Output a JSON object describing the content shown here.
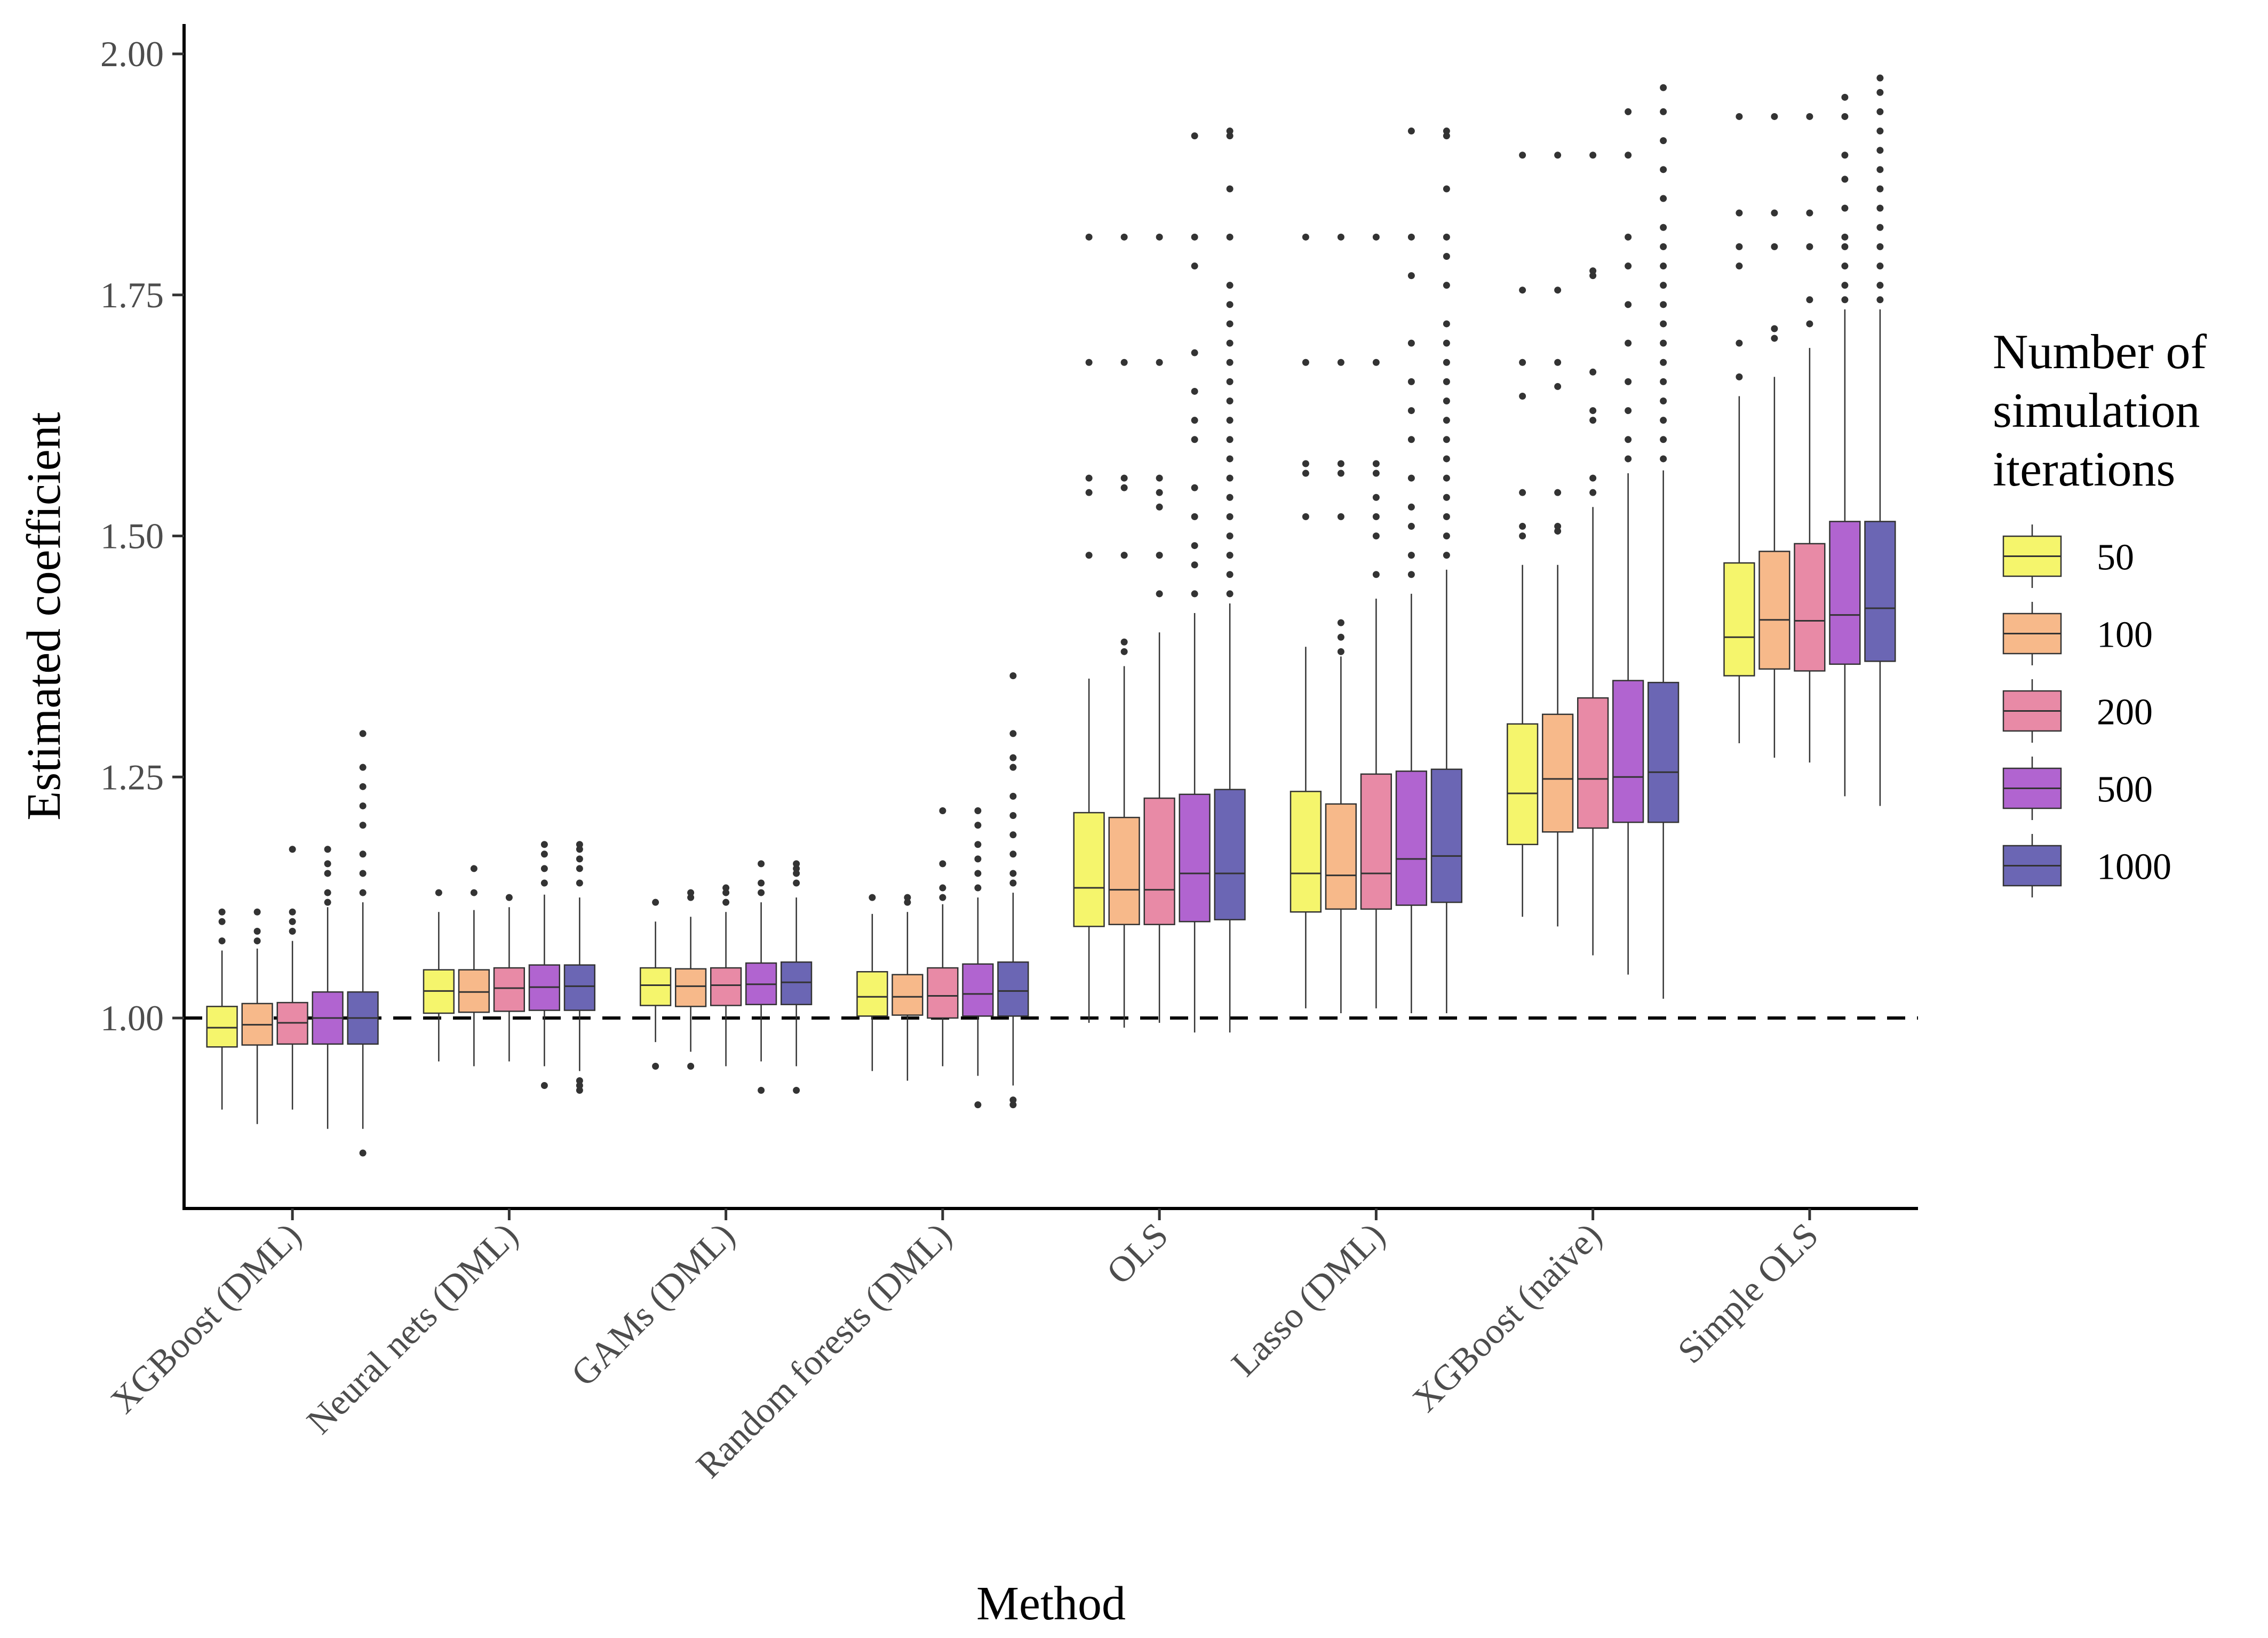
{
  "chart_data": {
    "type": "boxplot",
    "title": "",
    "xlabel": "Method",
    "ylabel": "Estimated coefficient",
    "ylim": [
      0.8,
      2.03
    ],
    "yticks": [
      1.0,
      1.25,
      1.5,
      1.75,
      2.0
    ],
    "ytick_labels": [
      "1.00",
      "1.25",
      "1.50",
      "1.75",
      "2.00"
    ],
    "reference_line": 1.0,
    "categories": [
      "XGBoost (DML)",
      "Neural nets (DML)",
      "GAMs (DML)",
      "Random forests (DML)",
      "OLS",
      "Lasso (DML)",
      "XGBoost (naive)",
      "Simple OLS"
    ],
    "legend": {
      "title_lines": [
        "Number of",
        "simulation",
        "iterations"
      ],
      "position": "right"
    },
    "series": [
      {
        "name": "50",
        "color": "#f5f56c",
        "boxes": [
          {
            "whislo": 0.905,
            "q1": 0.97,
            "med": 0.99,
            "q3": 1.012,
            "whishi": 1.07,
            "fliers": [
              1.08,
              1.1,
              1.11
            ]
          },
          {
            "whislo": 0.955,
            "q1": 1.005,
            "med": 1.028,
            "q3": 1.05,
            "whishi": 1.11,
            "fliers": [
              1.13
            ]
          },
          {
            "whislo": 0.975,
            "q1": 1.013,
            "med": 1.034,
            "q3": 1.052,
            "whishi": 1.1,
            "fliers": [
              0.95,
              1.12
            ]
          },
          {
            "whislo": 0.945,
            "q1": 1.002,
            "med": 1.022,
            "q3": 1.048,
            "whishi": 1.108,
            "fliers": [
              1.125
            ]
          },
          {
            "whislo": 0.995,
            "q1": 1.095,
            "med": 1.135,
            "q3": 1.213,
            "whishi": 1.352,
            "fliers": [
              1.48,
              1.545,
              1.56,
              1.68,
              1.81
            ]
          },
          {
            "whislo": 1.01,
            "q1": 1.11,
            "med": 1.15,
            "q3": 1.235,
            "whishi": 1.385,
            "fliers": [
              1.52,
              1.565,
              1.575,
              1.68,
              1.81
            ]
          },
          {
            "whislo": 1.105,
            "q1": 1.18,
            "med": 1.233,
            "q3": 1.305,
            "whishi": 1.47,
            "fliers": [
              1.5,
              1.51,
              1.545,
              1.645,
              1.68,
              1.755,
              1.895
            ]
          },
          {
            "whislo": 1.285,
            "q1": 1.355,
            "med": 1.395,
            "q3": 1.472,
            "whishi": 1.645,
            "fliers": [
              1.665,
              1.7,
              1.78,
              1.8,
              1.835,
              1.935
            ]
          }
        ]
      },
      {
        "name": "100",
        "color": "#f7b98a",
        "boxes": [
          {
            "whislo": 0.89,
            "q1": 0.972,
            "med": 0.993,
            "q3": 1.015,
            "whishi": 1.072,
            "fliers": [
              1.08,
              1.09,
              1.11
            ]
          },
          {
            "whislo": 0.95,
            "q1": 1.006,
            "med": 1.027,
            "q3": 1.05,
            "whishi": 1.112,
            "fliers": [
              1.13,
              1.155
            ]
          },
          {
            "whislo": 0.965,
            "q1": 1.012,
            "med": 1.033,
            "q3": 1.051,
            "whishi": 1.105,
            "fliers": [
              0.95,
              1.125,
              1.13
            ]
          },
          {
            "whislo": 0.935,
            "q1": 1.003,
            "med": 1.022,
            "q3": 1.045,
            "whishi": 1.11,
            "fliers": [
              1.12,
              1.125
            ]
          },
          {
            "whislo": 0.99,
            "q1": 1.097,
            "med": 1.133,
            "q3": 1.208,
            "whishi": 1.365,
            "fliers": [
              1.38,
              1.39,
              1.48,
              1.55,
              1.56,
              1.68,
              1.81
            ]
          },
          {
            "whislo": 1.005,
            "q1": 1.113,
            "med": 1.148,
            "q3": 1.222,
            "whishi": 1.375,
            "fliers": [
              1.38,
              1.395,
              1.41,
              1.52,
              1.565,
              1.575,
              1.68,
              1.81
            ]
          },
          {
            "whislo": 1.095,
            "q1": 1.193,
            "med": 1.248,
            "q3": 1.315,
            "whishi": 1.47,
            "fliers": [
              1.505,
              1.51,
              1.545,
              1.655,
              1.68,
              1.755,
              1.895
            ]
          },
          {
            "whislo": 1.27,
            "q1": 1.362,
            "med": 1.413,
            "q3": 1.484,
            "whishi": 1.665,
            "fliers": [
              1.705,
              1.715,
              1.8,
              1.835,
              1.935
            ]
          }
        ]
      },
      {
        "name": "200",
        "color": "#e88aa6",
        "boxes": [
          {
            "whislo": 0.905,
            "q1": 0.973,
            "med": 0.995,
            "q3": 1.016,
            "whishi": 1.08,
            "fliers": [
              1.09,
              1.1,
              1.11,
              1.175
            ]
          },
          {
            "whislo": 0.955,
            "q1": 1.007,
            "med": 1.031,
            "q3": 1.052,
            "whishi": 1.115,
            "fliers": [
              1.125
            ]
          },
          {
            "whislo": 0.95,
            "q1": 1.013,
            "med": 1.034,
            "q3": 1.052,
            "whishi": 1.11,
            "fliers": [
              1.12,
              1.13,
              1.135
            ]
          },
          {
            "whislo": 0.95,
            "q1": 1.0,
            "med": 1.023,
            "q3": 1.052,
            "whishi": 1.118,
            "fliers": [
              1.125,
              1.135,
              1.16,
              1.215
            ]
          },
          {
            "whislo": 0.995,
            "q1": 1.097,
            "med": 1.133,
            "q3": 1.228,
            "whishi": 1.4,
            "fliers": [
              1.44,
              1.48,
              1.53,
              1.545,
              1.56,
              1.68,
              1.81
            ]
          },
          {
            "whislo": 1.01,
            "q1": 1.113,
            "med": 1.15,
            "q3": 1.253,
            "whishi": 1.435,
            "fliers": [
              1.46,
              1.5,
              1.52,
              1.54,
              1.565,
              1.575,
              1.68,
              1.81
            ]
          },
          {
            "whislo": 1.065,
            "q1": 1.197,
            "med": 1.248,
            "q3": 1.332,
            "whishi": 1.53,
            "fliers": [
              1.545,
              1.56,
              1.62,
              1.63,
              1.67,
              1.77,
              1.775,
              1.895
            ]
          },
          {
            "whislo": 1.265,
            "q1": 1.36,
            "med": 1.412,
            "q3": 1.492,
            "whishi": 1.695,
            "fliers": [
              1.72,
              1.745,
              1.8,
              1.835,
              1.935
            ]
          }
        ]
      },
      {
        "name": "500",
        "color": "#b164d0",
        "boxes": [
          {
            "whislo": 0.885,
            "q1": 0.973,
            "med": 1.0,
            "q3": 1.027,
            "whishi": 1.115,
            "fliers": [
              1.12,
              1.13,
              1.15,
              1.16,
              1.175
            ]
          },
          {
            "whislo": 0.95,
            "q1": 1.008,
            "med": 1.032,
            "q3": 1.055,
            "whishi": 1.128,
            "fliers": [
              0.93,
              1.14,
              1.155,
              1.17,
              1.18
            ]
          },
          {
            "whislo": 0.955,
            "q1": 1.014,
            "med": 1.035,
            "q3": 1.057,
            "whishi": 1.12,
            "fliers": [
              0.925,
              1.13,
              1.14,
              1.16
            ]
          },
          {
            "whislo": 0.94,
            "q1": 1.002,
            "med": 1.025,
            "q3": 1.056,
            "whishi": 1.125,
            "fliers": [
              0.91,
              1.135,
              1.15,
              1.165,
              1.18,
              1.2,
              1.215
            ]
          },
          {
            "whislo": 0.985,
            "q1": 1.1,
            "med": 1.15,
            "q3": 1.232,
            "whishi": 1.42,
            "fliers": [
              1.44,
              1.47,
              1.49,
              1.52,
              1.55,
              1.6,
              1.62,
              1.65,
              1.69,
              1.78,
              1.81,
              1.915
            ]
          },
          {
            "whislo": 1.005,
            "q1": 1.117,
            "med": 1.165,
            "q3": 1.256,
            "whishi": 1.44,
            "fliers": [
              1.46,
              1.48,
              1.51,
              1.53,
              1.56,
              1.6,
              1.63,
              1.66,
              1.7,
              1.77,
              1.81,
              1.92
            ]
          },
          {
            "whislo": 1.045,
            "q1": 1.203,
            "med": 1.25,
            "q3": 1.35,
            "whishi": 1.565,
            "fliers": [
              1.58,
              1.6,
              1.63,
              1.66,
              1.7,
              1.74,
              1.78,
              1.81,
              1.895,
              1.94
            ]
          },
          {
            "whislo": 1.23,
            "q1": 1.367,
            "med": 1.418,
            "q3": 1.515,
            "whishi": 1.735,
            "fliers": [
              1.745,
              1.76,
              1.78,
              1.8,
              1.81,
              1.84,
              1.87,
              1.895,
              1.935,
              1.955
            ]
          }
        ]
      },
      {
        "name": "1000",
        "color": "#6b66b4",
        "boxes": [
          {
            "whislo": 0.885,
            "q1": 0.973,
            "med": 1.0,
            "q3": 1.027,
            "whishi": 1.12,
            "fliers": [
              0.86,
              1.13,
              1.15,
              1.17,
              1.2,
              1.22,
              1.24,
              1.26,
              1.295
            ]
          },
          {
            "whislo": 0.945,
            "q1": 1.008,
            "med": 1.033,
            "q3": 1.055,
            "whishi": 1.125,
            "fliers": [
              0.925,
              0.93,
              0.935,
              1.14,
              1.155,
              1.165,
              1.175,
              1.18
            ]
          },
          {
            "whislo": 0.95,
            "q1": 1.014,
            "med": 1.037,
            "q3": 1.058,
            "whishi": 1.125,
            "fliers": [
              0.925,
              1.14,
              1.15,
              1.155,
              1.16
            ]
          },
          {
            "whislo": 0.93,
            "q1": 1.002,
            "med": 1.028,
            "q3": 1.058,
            "whishi": 1.13,
            "fliers": [
              0.91,
              0.915,
              1.14,
              1.15,
              1.17,
              1.19,
              1.21,
              1.23,
              1.26,
              1.27,
              1.295,
              1.355
            ]
          },
          {
            "whislo": 0.985,
            "q1": 1.102,
            "med": 1.15,
            "q3": 1.237,
            "whishi": 1.43,
            "fliers": [
              1.44,
              1.46,
              1.48,
              1.5,
              1.52,
              1.54,
              1.56,
              1.58,
              1.6,
              1.62,
              1.64,
              1.66,
              1.68,
              1.7,
              1.72,
              1.74,
              1.76,
              1.81,
              1.86,
              1.915,
              1.92
            ]
          },
          {
            "whislo": 1.005,
            "q1": 1.12,
            "med": 1.168,
            "q3": 1.258,
            "whishi": 1.465,
            "fliers": [
              1.48,
              1.5,
              1.52,
              1.54,
              1.56,
              1.58,
              1.6,
              1.62,
              1.64,
              1.66,
              1.68,
              1.7,
              1.72,
              1.76,
              1.79,
              1.81,
              1.86,
              1.915,
              1.92
            ]
          },
          {
            "whislo": 1.02,
            "q1": 1.203,
            "med": 1.255,
            "q3": 1.348,
            "whishi": 1.568,
            "fliers": [
              1.58,
              1.6,
              1.62,
              1.64,
              1.66,
              1.68,
              1.7,
              1.72,
              1.74,
              1.76,
              1.78,
              1.8,
              1.82,
              1.85,
              1.88,
              1.91,
              1.94,
              1.965
            ]
          },
          {
            "whislo": 1.22,
            "q1": 1.37,
            "med": 1.425,
            "q3": 1.515,
            "whishi": 1.735,
            "fliers": [
              1.745,
              1.76,
              1.78,
              1.8,
              1.82,
              1.84,
              1.86,
              1.88,
              1.9,
              1.92,
              1.94,
              1.96,
              1.975
            ]
          }
        ]
      }
    ]
  }
}
